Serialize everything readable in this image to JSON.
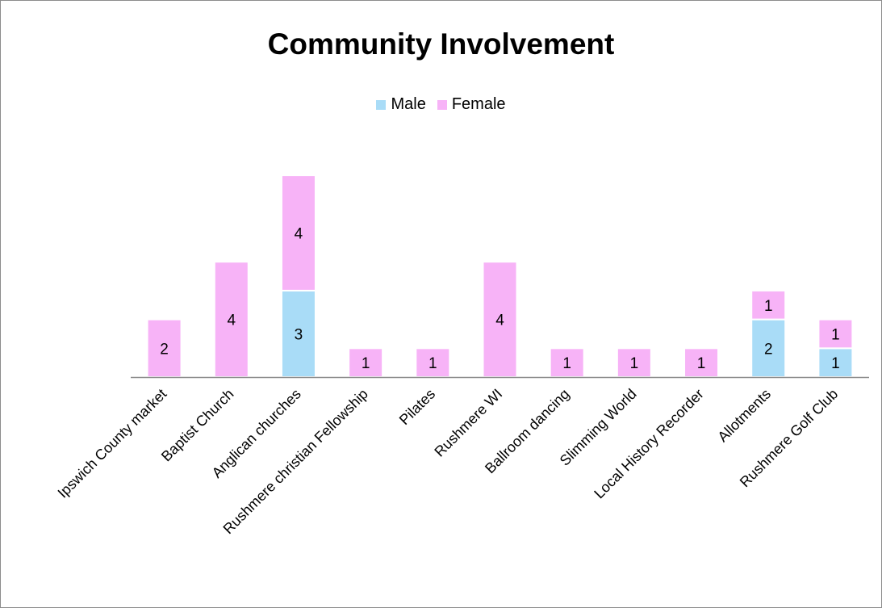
{
  "chart_data": {
    "type": "bar",
    "stacked": true,
    "title": "Community Involvement",
    "xlabel": "",
    "ylabel": "",
    "categories": [
      "Ipswich County market",
      "Baptist Church",
      "Anglican churches",
      "Rushmere christian Fellowship",
      "Pilates",
      "Rushmere WI",
      "Ballroom dancing",
      "Slimming World",
      "Local History Recorder",
      "Allotments",
      "Rushmere Golf Club"
    ],
    "series": [
      {
        "name": "Male",
        "color": "#a9dcf7",
        "values": [
          0,
          0,
          3,
          0,
          0,
          0,
          0,
          0,
          0,
          2,
          1
        ]
      },
      {
        "name": "Female",
        "color": "#f7b3f7",
        "values": [
          2,
          4,
          4,
          1,
          1,
          4,
          1,
          1,
          1,
          1,
          1
        ]
      }
    ],
    "ylim": [
      0,
      7
    ],
    "grid": false,
    "legend_position": "top",
    "data_labels": true
  }
}
